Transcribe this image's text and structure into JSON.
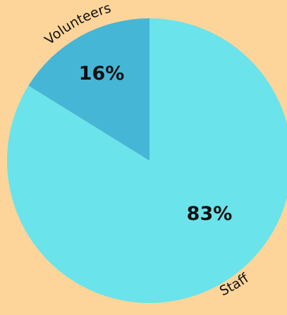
{
  "chart_data": {
    "type": "pie",
    "categories": [
      "Staff",
      "Volunteers"
    ],
    "values": [
      83,
      16
    ],
    "value_labels": [
      "83%",
      "16%"
    ],
    "colors": [
      "#6be3ea",
      "#46b6d6"
    ],
    "background": "#fdd59a"
  }
}
